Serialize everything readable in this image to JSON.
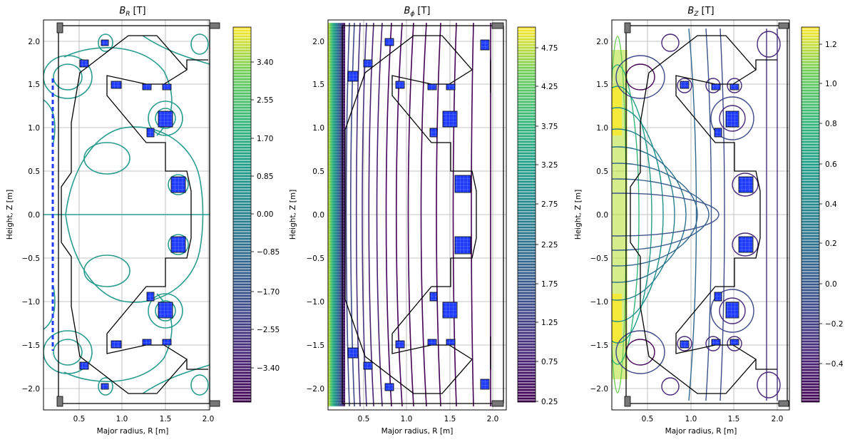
{
  "chart_data": [
    {
      "type": "contour",
      "title_main": "B",
      "title_sub": "R",
      "title_unit": "[T]",
      "xlabel": "Major radius, R [m]",
      "ylabel": "Height, Z [m]",
      "xlim": [
        0.1,
        2.15
      ],
      "ylim": [
        -2.25,
        2.25
      ],
      "xticks": [
        "0.5",
        "1.0",
        "1.5",
        "2.0"
      ],
      "yticks": [
        "2.0",
        "1.5",
        "1.0",
        "0.5",
        "0.0",
        "−0.5",
        "−1.0",
        "−1.5",
        "−2.0"
      ],
      "colorbar": {
        "colormap": "viridis",
        "range": [
          -4.25,
          4.25
        ],
        "ticks": [
          "3.40",
          "2.55",
          "1.70",
          "0.85",
          "0.00",
          "−0.85",
          "−1.70",
          "−2.55",
          "−3.40"
        ],
        "tick_values": [
          3.4,
          2.55,
          1.7,
          0.85,
          0.0,
          -0.85,
          -1.7,
          -2.55,
          -3.4
        ]
      },
      "grid": true
    },
    {
      "type": "contour",
      "title_main": "B",
      "title_sub": "ϕ",
      "title_unit": "[T]",
      "xlabel": "Major radius, R [m]",
      "ylabel": "Height, Z [m]",
      "xlim": [
        0.1,
        2.15
      ],
      "ylim": [
        -2.25,
        2.25
      ],
      "xticks": [
        "0.5",
        "1.0",
        "1.5",
        "2.0"
      ],
      "yticks": [
        "2.0",
        "1.5",
        "1.0",
        "0.5",
        "0.0",
        "−0.5",
        "−1.0",
        "−1.5",
        "−2.0"
      ],
      "colorbar": {
        "colormap": "viridis",
        "range": [
          0.25,
          5.0
        ],
        "ticks": [
          "4.75",
          "4.25",
          "3.75",
          "3.25",
          "2.75",
          "2.25",
          "1.75",
          "1.25",
          "0.75",
          "0.25"
        ],
        "tick_values": [
          4.75,
          4.25,
          3.75,
          3.25,
          2.75,
          2.25,
          1.75,
          1.25,
          0.75,
          0.25
        ]
      },
      "grid": true
    },
    {
      "type": "contour",
      "title_main": "B",
      "title_sub": "Z",
      "title_unit": "[T]",
      "xlabel": "Major radius, R [m]",
      "ylabel": "Height, Z [m]",
      "xlim": [
        0.1,
        2.15
      ],
      "ylim": [
        -2.25,
        2.25
      ],
      "xticks": [
        "0.5",
        "1.0",
        "1.5",
        "2.0"
      ],
      "yticks": [
        "2.0",
        "1.5",
        "1.0",
        "0.5",
        "0.0",
        "−0.5",
        "−1.0",
        "−1.5",
        "−2.0"
      ],
      "colorbar": {
        "colormap": "viridis",
        "range": [
          -0.6,
          1.28
        ],
        "ticks": [
          "1.2",
          "1.0",
          "0.8",
          "0.6",
          "0.4",
          "0.2",
          "0.0",
          "−0.2",
          "−0.4"
        ],
        "tick_values": [
          1.2,
          1.0,
          0.8,
          0.6,
          0.4,
          0.2,
          0.0,
          -0.2,
          -0.4
        ]
      },
      "grid": true
    }
  ],
  "colors": {
    "coil_fill": "#1f3cff",
    "structure": "#000000",
    "grid": "#b0b0b0"
  }
}
